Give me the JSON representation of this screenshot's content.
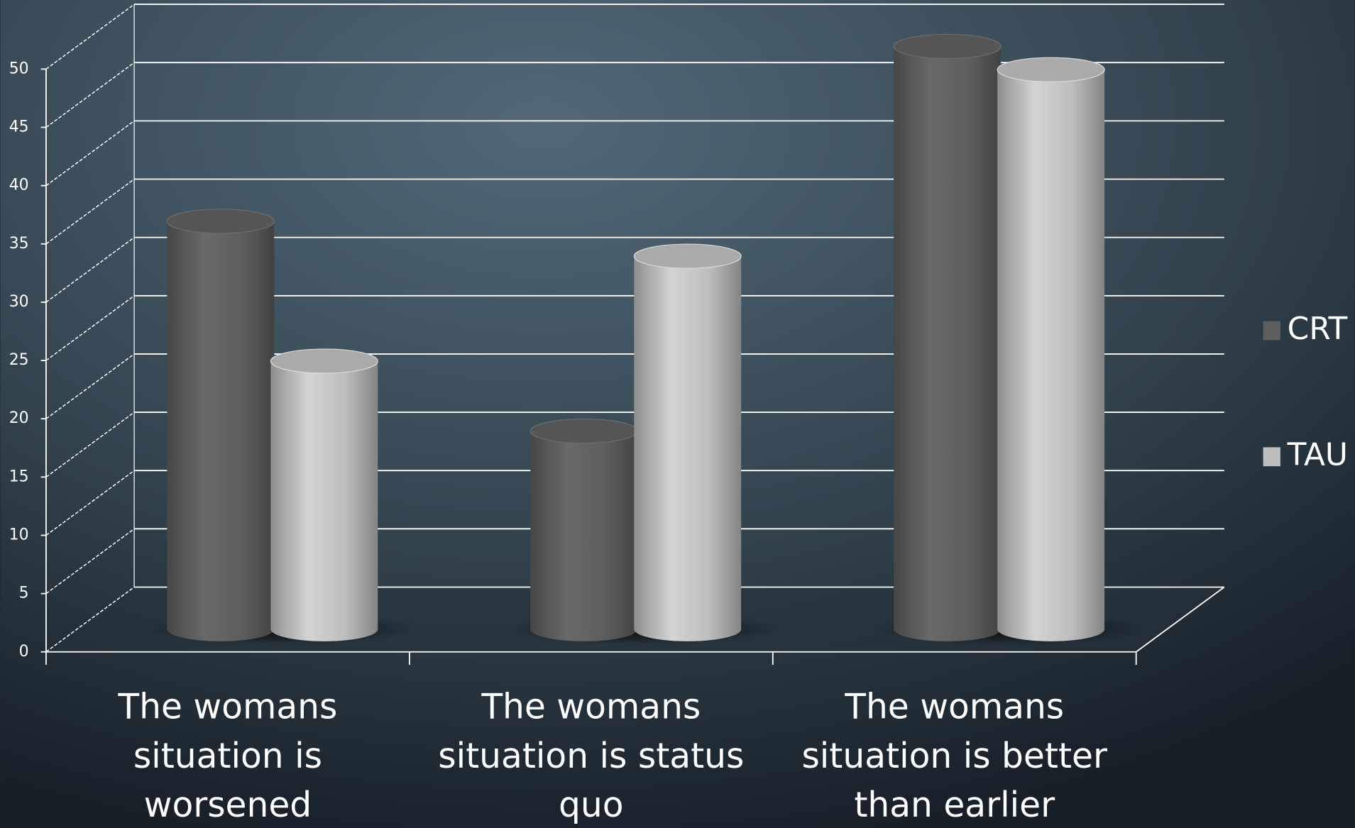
{
  "chart_data": {
    "type": "bar3d",
    "categories": [
      "The womans situation is worsened",
      "The womans situation is status quo",
      "The womans situation is better than earlier"
    ],
    "series": [
      {
        "name": "CRT",
        "color": "#5e5e5e",
        "values": [
          35,
          17,
          50
        ]
      },
      {
        "name": "TAU",
        "color": "#bdbdbd",
        "values": [
          23,
          32,
          48
        ]
      }
    ],
    "ylim": [
      0,
      50
    ],
    "yticks": [
      0,
      5,
      10,
      15,
      20,
      25,
      30,
      35,
      40,
      45,
      50
    ],
    "grid": true,
    "legend": "right"
  }
}
